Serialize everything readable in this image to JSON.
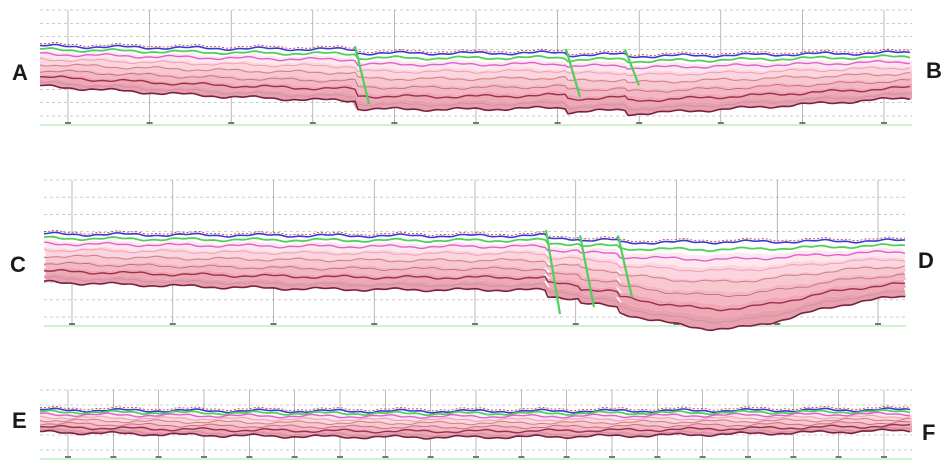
{
  "sections": [
    {
      "id": "AB",
      "start_label": "A",
      "end_label": "B",
      "trace_count": 11,
      "faults": 3,
      "fault_throws": [
        1.5,
        0.9,
        0.8
      ]
    },
    {
      "id": "CD",
      "start_label": "C",
      "end_label": "D",
      "trace_count": 9,
      "faults": 3,
      "fault_throws": [
        1.2,
        0.8,
        1.0
      ]
    },
    {
      "id": "EF",
      "start_label": "E",
      "end_label": "F",
      "trace_count": 19,
      "faults": 0,
      "fault_throws": []
    }
  ],
  "colors": {
    "fault": "#4fd05a",
    "grid": "#9a9a9a",
    "baseline": "#9be69b",
    "horizons": [
      "#3a3ad0",
      "#e060d0",
      "#f0a0b0",
      "#d08080",
      "#9a3050",
      "#7a2040"
    ]
  }
}
